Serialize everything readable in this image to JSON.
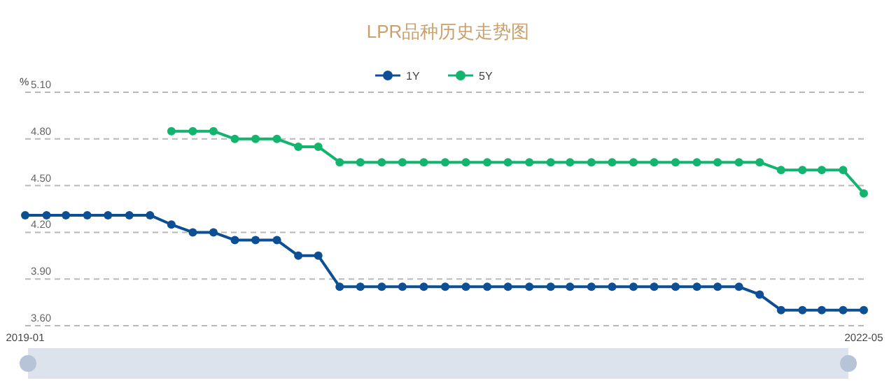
{
  "chart_data": {
    "type": "line",
    "title": "LPR品种历史走势图",
    "ylabel": "%",
    "x": [
      "2019-01",
      "2019-02",
      "2019-03",
      "2019-04",
      "2019-05",
      "2019-06",
      "2019-07",
      "2019-08",
      "2019-09",
      "2019-10",
      "2019-11",
      "2019-12",
      "2020-01",
      "2020-02",
      "2020-03",
      "2020-04",
      "2020-05",
      "2020-06",
      "2020-07",
      "2020-08",
      "2020-09",
      "2020-10",
      "2020-11",
      "2020-12",
      "2021-01",
      "2021-02",
      "2021-03",
      "2021-04",
      "2021-05",
      "2021-06",
      "2021-07",
      "2021-08",
      "2021-09",
      "2021-10",
      "2021-11",
      "2021-12",
      "2022-01",
      "2022-02",
      "2022-03",
      "2022-04",
      "2022-05"
    ],
    "series": [
      {
        "name": "1Y",
        "color": "#0d4f94",
        "values": [
          4.31,
          4.31,
          4.31,
          4.31,
          4.31,
          4.31,
          4.31,
          4.25,
          4.2,
          4.2,
          4.15,
          4.15,
          4.15,
          4.05,
          4.05,
          3.85,
          3.85,
          3.85,
          3.85,
          3.85,
          3.85,
          3.85,
          3.85,
          3.85,
          3.85,
          3.85,
          3.85,
          3.85,
          3.85,
          3.85,
          3.85,
          3.85,
          3.85,
          3.85,
          3.85,
          3.8,
          3.7,
          3.7,
          3.7,
          3.7,
          3.7
        ]
      },
      {
        "name": "5Y",
        "color": "#13b46e",
        "values": [
          null,
          null,
          null,
          null,
          null,
          null,
          null,
          4.85,
          4.85,
          4.85,
          4.8,
          4.8,
          4.8,
          4.75,
          4.75,
          4.65,
          4.65,
          4.65,
          4.65,
          4.65,
          4.65,
          4.65,
          4.65,
          4.65,
          4.65,
          4.65,
          4.65,
          4.65,
          4.65,
          4.65,
          4.65,
          4.65,
          4.65,
          4.65,
          4.65,
          4.65,
          4.6,
          4.6,
          4.6,
          4.6,
          4.45
        ]
      }
    ],
    "xlim": [
      "2019-01",
      "2022-05"
    ],
    "xticks": [
      "2019-01",
      "2022-05"
    ],
    "ylim": [
      3.6,
      5.1
    ],
    "yticks": [
      {
        "value": 3.6,
        "label": "3.60"
      },
      {
        "value": 3.9,
        "label": "3.90"
      },
      {
        "value": 4.2,
        "label": "4.20"
      },
      {
        "value": 4.5,
        "label": "4.50"
      },
      {
        "value": 4.8,
        "label": "4.80"
      },
      {
        "value": 5.1,
        "label": "5.10"
      }
    ],
    "grid": "y",
    "legend": "top",
    "marker": "circle",
    "line_style": "solid"
  }
}
